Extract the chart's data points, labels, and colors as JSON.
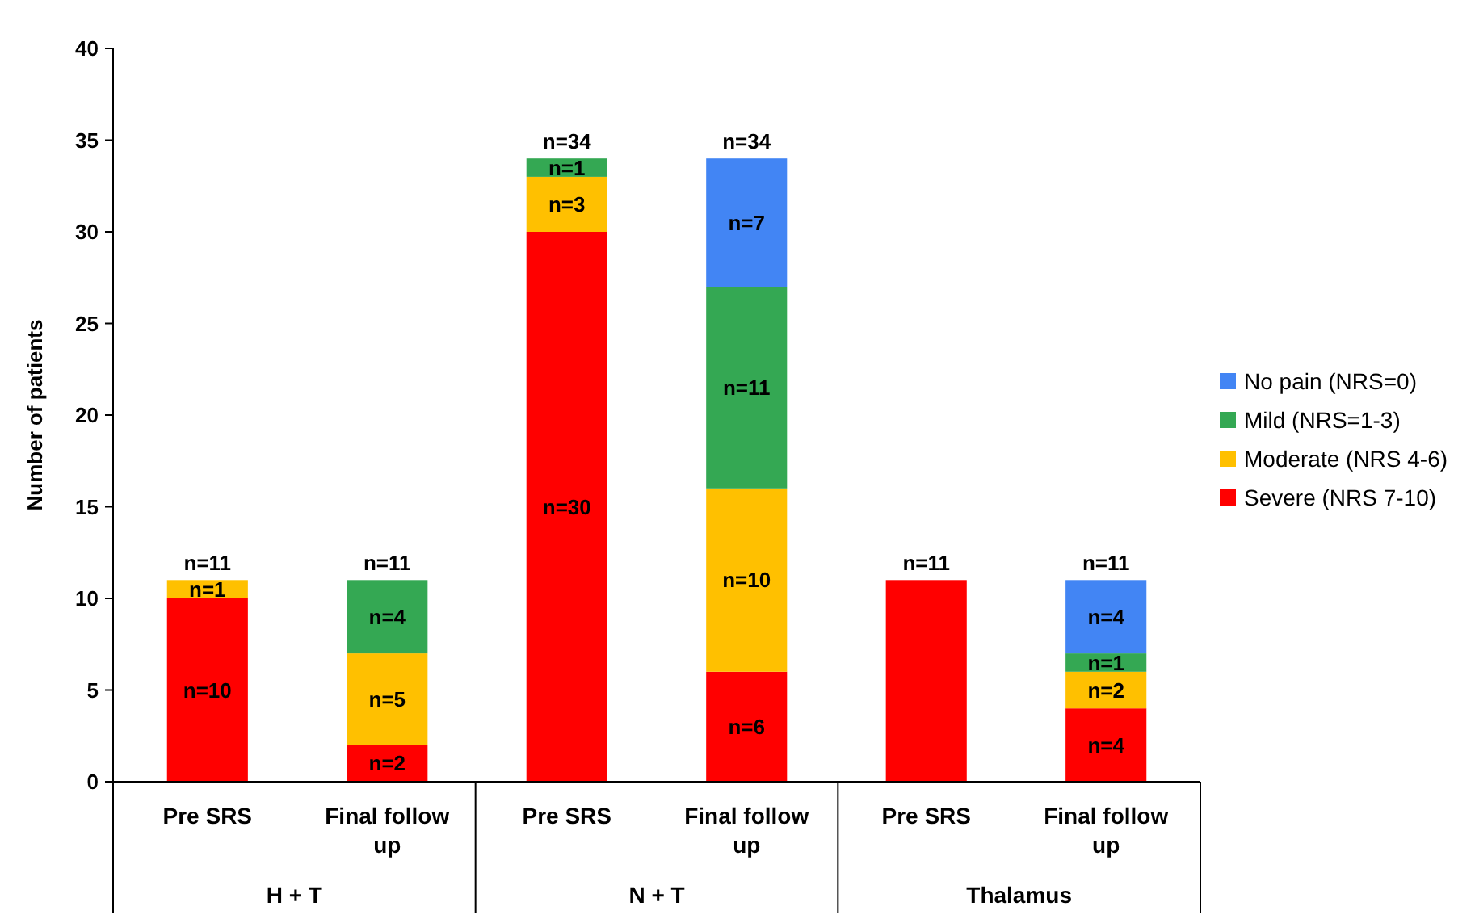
{
  "chart_data": {
    "type": "bar",
    "stacked": true,
    "ylabel": "Number of patients",
    "categories": [
      "Pre SRS",
      "Final follow up",
      "Pre SRS",
      "Final follow up",
      "Pre SRS",
      "Final follow up"
    ],
    "series": [
      {
        "name": "Severe (NRS 7-10)",
        "color": "#ff0000",
        "values": [
          10,
          2,
          30,
          6,
          11,
          4
        ],
        "value_labels": [
          "n=10",
          "n=2",
          "n=30",
          "n=6",
          null,
          "n=4"
        ]
      },
      {
        "name": "Moderate (NRS 4-6)",
        "color": "#ffc000",
        "values": [
          1,
          5,
          3,
          10,
          null,
          2
        ],
        "value_labels": [
          "n=1",
          "n=5",
          "n=3",
          "n=10",
          null,
          "n=2"
        ]
      },
      {
        "name": "Mild (NRS=1-3)",
        "color": "#34a853",
        "values": [
          null,
          4,
          1,
          11,
          null,
          1
        ],
        "value_labels": [
          null,
          "n=4",
          "n=1",
          "n=11",
          null,
          "n=1"
        ]
      },
      {
        "name": "No pain (NRS=0)",
        "color": "#4285f4",
        "values": [
          null,
          null,
          null,
          7,
          null,
          4
        ],
        "value_labels": [
          null,
          null,
          null,
          "n=7",
          null,
          "n=4"
        ]
      }
    ],
    "totals": [
      "n=11",
      "n=11",
      "n=34",
      "n=34",
      "n=11",
      "n=11"
    ],
    "annotations": [
      "H + T",
      "N + T",
      "Thalamus"
    ],
    "ylim": [
      0,
      40
    ],
    "yticks": [
      0,
      5,
      10,
      15,
      20,
      25,
      30,
      35,
      40
    ],
    "grid": false,
    "legend": "right"
  }
}
